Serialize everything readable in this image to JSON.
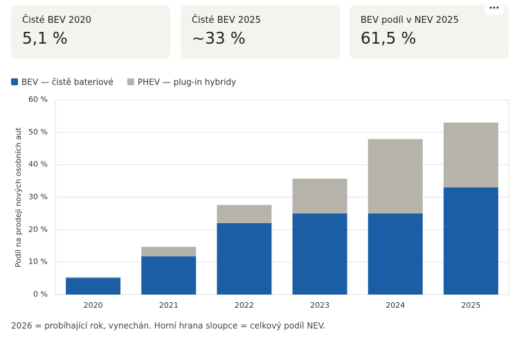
{
  "cards": [
    {
      "label": "Čisté BEV 2020",
      "value": "5,1 %"
    },
    {
      "label": "Čisté BEV 2025",
      "value": "~33 %"
    },
    {
      "label": "BEV podíl v NEV 2025",
      "value": "61,5 %"
    }
  ],
  "chart_data": {
    "type": "stacked-bar",
    "y_label": "Podíl na prodeji nových osobních aut",
    "categories": [
      "2020",
      "2021",
      "2022",
      "2023",
      "2024",
      "2025"
    ],
    "series": [
      {
        "name": "BEV — čistě bateriové",
        "color": "#1b5ea6",
        "values": [
          5.1,
          11.8,
          22,
          25,
          25,
          33
        ]
      },
      {
        "name": "PHEV — plug-in hybridy",
        "color": "#b6b3aa",
        "values": [
          0.3,
          2.9,
          5.6,
          10.7,
          22.9,
          20
        ]
      }
    ],
    "ylim": [
      0,
      60
    ],
    "yticks": [
      {
        "value": 0,
        "label": "0 %"
      },
      {
        "value": 10,
        "label": "10 %"
      },
      {
        "value": 20,
        "label": "20 %"
      },
      {
        "value": 30,
        "label": "30 %"
      },
      {
        "value": 40,
        "label": "40 %"
      },
      {
        "value": 50,
        "label": "50 %"
      },
      {
        "value": 60,
        "label": "60 %"
      }
    ],
    "grid": true
  },
  "footnote": "2026 = probíhající rok, vynechán. Horní hrana sloupce = celkový podíl NEV."
}
